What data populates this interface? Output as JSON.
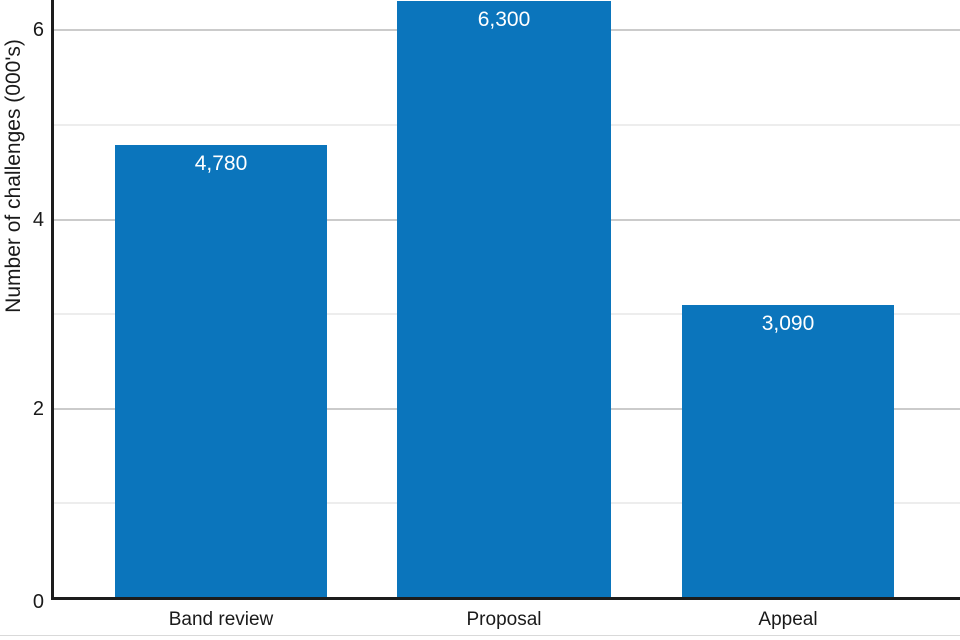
{
  "chart_data": {
    "type": "bar",
    "title": "",
    "xlabel": "",
    "ylabel": "Number of challenges (000's)",
    "categories": [
      "Band review",
      "Proposal",
      "Appeal"
    ],
    "values": [
      4780,
      6300,
      3090
    ],
    "value_labels": [
      "4,780",
      "6,300",
      "3,090"
    ],
    "value_unit": "thousands of challenges",
    "y_axis_ticks": [
      0,
      2,
      4,
      6
    ],
    "gridline_values": [
      1,
      2,
      3,
      4,
      5,
      6
    ],
    "ylim": [
      0,
      6.3
    ],
    "grid": "horizontal",
    "legend": "none",
    "colors": {
      "bar": "#0b75bc",
      "bar_value_text": "#ffffff",
      "axis_line": "#1c1c1c",
      "tick_text": "#1a1a1a",
      "major_gridline": "#cbcbcb",
      "minor_gridline": "#ededed",
      "bottom_divider": "#d9d9d9"
    }
  }
}
